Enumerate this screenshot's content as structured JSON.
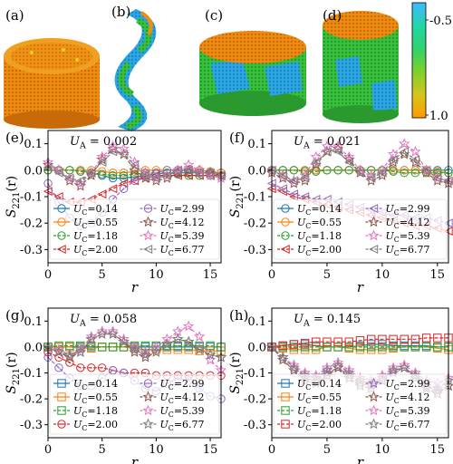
{
  "panel_letters": [
    "(a)",
    "(b)",
    "(c)",
    "(d)"
  ],
  "colorbar": {
    "label_top": "-0.5",
    "label_bottom": "1.0",
    "colors": [
      "#3fb8ff",
      "#22d6a6",
      "#2ed36c",
      "#7fd02a",
      "#d6c41c",
      "#ff9a00"
    ]
  },
  "snapshot_colors": {
    "orange": "#f08c10",
    "orange_dark": "#c86a08",
    "green": "#38c23c",
    "blue": "#2aa8e6",
    "yellow": "#e6d21e"
  },
  "legend_labels": [
    "U_C=0.14",
    "U_C=0.55",
    "U_C=1.18",
    "U_C=2.00",
    "U_C=2.99",
    "U_C=4.12",
    "U_C=5.39",
    "U_C=6.77"
  ],
  "chart_data": [
    {
      "panel": "(e)",
      "annotation_label": "U_A",
      "annotation_value": "= 0.002",
      "type": "line",
      "xlabel": "r",
      "ylabel": "S_221(r)",
      "xlim": [
        0,
        16
      ],
      "ylim": [
        -0.35,
        0.15
      ],
      "xticks": [
        0,
        5,
        10,
        15
      ],
      "yticks": [
        0.1,
        0.0,
        -0.1,
        -0.2,
        -0.3
      ],
      "x": [
        0,
        1,
        2,
        3,
        4,
        5,
        6,
        7,
        8,
        9,
        10,
        11,
        12,
        13,
        14,
        15,
        16
      ],
      "series": [
        {
          "name": "U_C=0.14",
          "color": "#1f77b4",
          "marker": "circle",
          "dashed": false,
          "values": [
            0.0,
            0.0,
            0.0,
            0.0,
            -0.01,
            -0.02,
            -0.03,
            -0.03,
            -0.025,
            -0.02,
            -0.015,
            -0.01,
            -0.01,
            -0.01,
            -0.01,
            -0.01,
            -0.01
          ]
        },
        {
          "name": "U_C=0.55",
          "color": "#ff7f0e",
          "marker": "circle",
          "dashed": false,
          "values": [
            0.0,
            0.0,
            0.0,
            0.0,
            0.0,
            -0.005,
            -0.01,
            -0.01,
            -0.005,
            0.0,
            0.0,
            0.0,
            0.0,
            0.0,
            0.0,
            -0.005,
            -0.01
          ]
        },
        {
          "name": "U_C=1.18",
          "color": "#2ca02c",
          "marker": "circle",
          "dashed": true,
          "values": [
            0.0,
            0.0,
            0.0,
            -0.005,
            -0.01,
            -0.015,
            -0.02,
            -0.02,
            -0.015,
            -0.01,
            -0.01,
            -0.01,
            -0.015,
            -0.02,
            -0.02,
            -0.02,
            -0.02
          ]
        },
        {
          "name": "U_C=2.00",
          "color": "#d62728",
          "marker": "triangle-left",
          "dashed": true,
          "values": [
            -0.08,
            -0.1,
            -0.12,
            -0.12,
            -0.11,
            -0.09,
            -0.07,
            -0.05,
            -0.04,
            -0.03,
            -0.02,
            -0.02,
            -0.02,
            -0.02,
            -0.02,
            -0.02,
            -0.02
          ]
        },
        {
          "name": "U_C=2.99",
          "color": "#9467bd",
          "marker": "circle-dot",
          "dashed": true,
          "values": [
            -0.05,
            -0.12,
            -0.18,
            -0.21,
            -0.2,
            -0.16,
            -0.11,
            -0.07,
            -0.04,
            -0.02,
            -0.01,
            0.0,
            0.0,
            0.0,
            -0.01,
            -0.01,
            -0.02
          ]
        },
        {
          "name": "U_C=4.12",
          "color": "#8c564b",
          "marker": "star",
          "dashed": true,
          "values": [
            0.02,
            0.0,
            -0.04,
            -0.06,
            -0.02,
            0.04,
            0.08,
            0.06,
            0.0,
            -0.03,
            -0.04,
            -0.03,
            -0.01,
            0.0,
            0.0,
            -0.01,
            -0.02
          ]
        },
        {
          "name": "U_C=5.39",
          "color": "#e377c2",
          "marker": "star",
          "dashed": true,
          "values": [
            0.03,
            0.0,
            -0.03,
            -0.05,
            -0.01,
            0.05,
            0.09,
            0.08,
            0.03,
            -0.01,
            -0.03,
            -0.02,
            0.0,
            0.02,
            0.0,
            -0.02,
            -0.03
          ]
        },
        {
          "name": "U_C=6.77",
          "color": "#7f7f7f",
          "marker": "triangle-left",
          "dashed": true,
          "values": [
            0.01,
            -0.01,
            -0.03,
            -0.04,
            -0.01,
            0.03,
            0.07,
            0.06,
            0.02,
            -0.02,
            -0.03,
            -0.02,
            0.0,
            0.0,
            -0.01,
            -0.01,
            -0.02
          ]
        }
      ]
    },
    {
      "panel": "(f)",
      "annotation_label": "U_A",
      "annotation_value": "= 0.021",
      "type": "line",
      "xlabel": "r",
      "ylabel": "S_221(r)",
      "xlim": [
        0,
        16
      ],
      "ylim": [
        -0.35,
        0.15
      ],
      "xticks": [
        0,
        5,
        10,
        15
      ],
      "yticks": [
        0.1,
        0.0,
        -0.1,
        -0.2,
        -0.3
      ],
      "x": [
        0,
        1,
        2,
        3,
        4,
        5,
        6,
        7,
        8,
        9,
        10,
        11,
        12,
        13,
        14,
        15,
        16
      ],
      "series": [
        {
          "name": "U_C=0.14",
          "color": "#1f77b4",
          "marker": "circle",
          "dashed": false,
          "values": [
            0.0,
            0.0,
            0.0,
            0.0,
            0.0,
            0.0,
            0.0,
            0.0,
            0.0,
            0.0,
            0.0,
            0.0,
            0.0,
            0.0,
            0.0,
            0.0,
            0.0
          ]
        },
        {
          "name": "U_C=0.55",
          "color": "#ff7f0e",
          "marker": "circle",
          "dashed": false,
          "values": [
            0.0,
            0.0,
            0.0,
            0.0,
            0.0,
            0.0,
            0.0,
            0.0,
            0.0,
            0.0,
            0.0,
            0.0,
            0.0,
            0.0,
            0.0,
            -0.005,
            -0.01
          ]
        },
        {
          "name": "U_C=1.18",
          "color": "#2ca02c",
          "marker": "circle",
          "dashed": true,
          "values": [
            0.0,
            0.0,
            0.0,
            -0.005,
            -0.005,
            0.0,
            0.0,
            0.0,
            0.0,
            0.0,
            0.0,
            -0.005,
            -0.01,
            -0.01,
            -0.01,
            -0.01,
            -0.01
          ]
        },
        {
          "name": "U_C=2.00",
          "color": "#d62728",
          "marker": "triangle-left",
          "dashed": true,
          "values": [
            -0.07,
            -0.08,
            -0.1,
            -0.11,
            -0.12,
            -0.13,
            -0.14,
            -0.15,
            -0.16,
            -0.17,
            -0.18,
            -0.19,
            -0.2,
            -0.21,
            -0.21,
            -0.22,
            -0.23
          ]
        },
        {
          "name": "U_C=2.99",
          "color": "#9467bd",
          "marker": "triangle-left",
          "dashed": true,
          "values": [
            -0.05,
            -0.07,
            -0.09,
            -0.1,
            -0.11,
            -0.11,
            -0.12,
            -0.13,
            -0.14,
            -0.15,
            -0.16,
            -0.17,
            -0.17,
            -0.18,
            -0.18,
            -0.19,
            -0.2
          ]
        },
        {
          "name": "U_C=4.12",
          "color": "#8c564b",
          "marker": "star",
          "dashed": true,
          "values": [
            -0.01,
            -0.03,
            -0.05,
            -0.04,
            0.02,
            0.07,
            0.08,
            0.04,
            -0.01,
            -0.04,
            -0.02,
            0.03,
            0.06,
            0.03,
            -0.01,
            -0.04,
            -0.05
          ]
        },
        {
          "name": "U_C=5.39",
          "color": "#e377c2",
          "marker": "star",
          "dashed": true,
          "values": [
            0.0,
            -0.02,
            -0.04,
            -0.02,
            0.05,
            0.09,
            0.09,
            0.05,
            0.0,
            -0.02,
            0.0,
            0.06,
            0.1,
            0.07,
            0.0,
            -0.03,
            -0.04
          ]
        },
        {
          "name": "U_C=6.77",
          "color": "#7f7f7f",
          "marker": "triangle-left",
          "dashed": true,
          "values": [
            0.0,
            -0.02,
            -0.04,
            -0.03,
            0.03,
            0.07,
            0.07,
            0.03,
            -0.01,
            -0.03,
            -0.01,
            0.04,
            0.07,
            0.04,
            0.0,
            -0.03,
            -0.04
          ]
        }
      ]
    },
    {
      "panel": "(g)",
      "annotation_label": "U_A",
      "annotation_value": "= 0.058",
      "type": "line",
      "xlabel": "r",
      "ylabel": "S_221(r)",
      "xlim": [
        0,
        16
      ],
      "ylim": [
        -0.35,
        0.15
      ],
      "xticks": [
        0,
        5,
        10,
        15
      ],
      "yticks": [
        0.1,
        0.0,
        -0.1,
        -0.2,
        -0.3
      ],
      "x": [
        0,
        1,
        2,
        3,
        4,
        5,
        6,
        7,
        8,
        9,
        10,
        11,
        12,
        13,
        14,
        15,
        16
      ],
      "series": [
        {
          "name": "U_C=0.14",
          "color": "#1f77b4",
          "marker": "square",
          "dashed": false,
          "values": [
            0.0,
            0.0,
            0.0,
            0.0,
            0.0,
            0.0,
            0.0,
            0.0,
            0.0,
            0.0,
            0.0,
            0.0,
            0.0,
            0.0,
            0.0,
            0.0,
            0.0
          ]
        },
        {
          "name": "U_C=0.55",
          "color": "#ff7f0e",
          "marker": "square",
          "dashed": false,
          "values": [
            0.0,
            0.0,
            0.0,
            -0.005,
            -0.005,
            0.0,
            0.0,
            0.0,
            -0.005,
            -0.01,
            -0.01,
            -0.01,
            -0.01,
            -0.01,
            -0.015,
            -0.015,
            -0.015
          ]
        },
        {
          "name": "U_C=1.18",
          "color": "#2ca02c",
          "marker": "square",
          "dashed": true,
          "values": [
            0.0,
            0.005,
            0.005,
            0.005,
            0.005,
            0.0,
            0.0,
            0.0,
            0.005,
            0.005,
            0.005,
            0.005,
            0.005,
            0.005,
            0.005,
            0.005,
            0.0
          ]
        },
        {
          "name": "U_C=2.00",
          "color": "#d62728",
          "marker": "circle-dot",
          "dashed": true,
          "values": [
            -0.02,
            -0.04,
            -0.06,
            -0.08,
            -0.08,
            -0.08,
            -0.09,
            -0.1,
            -0.1,
            -0.1,
            -0.11,
            -0.11,
            -0.11,
            -0.11,
            -0.11,
            -0.11,
            -0.11
          ]
        },
        {
          "name": "U_C=2.99",
          "color": "#9467bd",
          "marker": "circle-dot",
          "dashed": true,
          "values": [
            -0.04,
            -0.08,
            -0.12,
            -0.15,
            -0.15,
            -0.12,
            -0.09,
            -0.1,
            -0.13,
            -0.16,
            -0.17,
            -0.14,
            -0.12,
            -0.13,
            -0.16,
            -0.19,
            -0.2
          ]
        },
        {
          "name": "U_C=4.12",
          "color": "#8c564b",
          "marker": "star",
          "dashed": true,
          "values": [
            0.0,
            -0.02,
            -0.04,
            -0.02,
            0.03,
            0.05,
            0.05,
            0.02,
            -0.02,
            -0.04,
            -0.02,
            0.01,
            0.03,
            0.02,
            -0.01,
            -0.03,
            -0.04
          ]
        },
        {
          "name": "U_C=5.39",
          "color": "#e377c2",
          "marker": "star",
          "dashed": true,
          "values": [
            0.0,
            -0.01,
            -0.03,
            -0.01,
            0.04,
            0.06,
            0.06,
            0.03,
            0.0,
            -0.02,
            0.0,
            0.03,
            0.06,
            0.08,
            0.04,
            -0.05,
            -0.09
          ]
        },
        {
          "name": "U_C=6.77",
          "color": "#7f7f7f",
          "marker": "star",
          "dashed": true,
          "values": [
            0.0,
            -0.02,
            -0.03,
            -0.02,
            0.03,
            0.05,
            0.05,
            0.02,
            -0.01,
            -0.03,
            -0.02,
            0.01,
            0.03,
            0.02,
            -0.01,
            -0.03,
            -0.04
          ]
        }
      ]
    },
    {
      "panel": "(h)",
      "annotation_label": "U_A",
      "annotation_value": "= 0.145",
      "type": "line",
      "xlabel": "r",
      "ylabel": "S_221(r)",
      "xlim": [
        0,
        16
      ],
      "ylim": [
        -0.35,
        0.15
      ],
      "xticks": [
        0,
        5,
        10,
        15
      ],
      "yticks": [
        0.1,
        0.0,
        -0.1,
        -0.2,
        -0.3
      ],
      "x": [
        0,
        1,
        2,
        3,
        4,
        5,
        6,
        7,
        8,
        9,
        10,
        11,
        12,
        13,
        14,
        15,
        16
      ],
      "series": [
        {
          "name": "U_C=0.14",
          "color": "#1f77b4",
          "marker": "square",
          "dashed": false,
          "values": [
            0.0,
            0.005,
            0.01,
            0.01,
            0.005,
            0.0,
            0.0,
            0.0,
            0.005,
            0.01,
            0.01,
            0.005,
            0.005,
            0.005,
            0.005,
            0.0,
            0.0
          ]
        },
        {
          "name": "U_C=0.55",
          "color": "#ff7f0e",
          "marker": "square",
          "dashed": false,
          "values": [
            0.0,
            -0.005,
            -0.01,
            -0.01,
            -0.01,
            0.0,
            0.0,
            -0.005,
            -0.01,
            -0.01,
            -0.01,
            -0.005,
            0.0,
            0.0,
            0.0,
            -0.005,
            -0.01
          ]
        },
        {
          "name": "U_C=1.18",
          "color": "#2ca02c",
          "marker": "square",
          "dashed": true,
          "values": [
            0.0,
            0.0,
            0.0,
            0.0,
            0.0,
            0.0,
            0.0,
            0.0,
            0.0,
            0.0,
            0.0,
            0.0,
            0.0,
            0.0,
            0.0,
            0.0,
            0.0
          ]
        },
        {
          "name": "U_C=2.00",
          "color": "#d62728",
          "marker": "square",
          "dashed": true,
          "values": [
            0.0,
            0.005,
            0.01,
            0.015,
            0.02,
            0.02,
            0.02,
            0.02,
            0.025,
            0.03,
            0.03,
            0.03,
            0.03,
            0.03,
            0.035,
            0.035,
            0.035
          ]
        },
        {
          "name": "U_C=2.99",
          "color": "#9467bd",
          "marker": "star",
          "dashed": true,
          "values": [
            0.0,
            -0.04,
            -0.08,
            -0.12,
            -0.13,
            -0.1,
            -0.08,
            -0.11,
            -0.14,
            -0.15,
            -0.13,
            -0.1,
            -0.08,
            -0.11,
            -0.15,
            -0.17,
            -0.15
          ]
        },
        {
          "name": "U_C=4.12",
          "color": "#8c564b",
          "marker": "star",
          "dashed": true,
          "values": [
            0.0,
            -0.05,
            -0.09,
            -0.13,
            -0.14,
            -0.11,
            -0.08,
            -0.12,
            -0.15,
            -0.16,
            -0.13,
            -0.09,
            -0.08,
            -0.12,
            -0.16,
            -0.18,
            -0.15
          ]
        },
        {
          "name": "U_C=5.39",
          "color": "#e377c2",
          "marker": "star",
          "dashed": true,
          "values": [
            0.0,
            -0.04,
            -0.07,
            -0.1,
            -0.11,
            -0.08,
            -0.06,
            -0.09,
            -0.12,
            -0.13,
            -0.11,
            -0.08,
            -0.07,
            -0.1,
            -0.13,
            -0.14,
            -0.12
          ]
        },
        {
          "name": "U_C=6.77",
          "color": "#7f7f7f",
          "marker": "star",
          "dashed": true,
          "values": [
            0.0,
            -0.04,
            -0.08,
            -0.11,
            -0.12,
            -0.09,
            -0.07,
            -0.1,
            -0.13,
            -0.14,
            -0.12,
            -0.09,
            -0.08,
            -0.11,
            -0.14,
            -0.16,
            -0.13
          ]
        }
      ]
    }
  ]
}
